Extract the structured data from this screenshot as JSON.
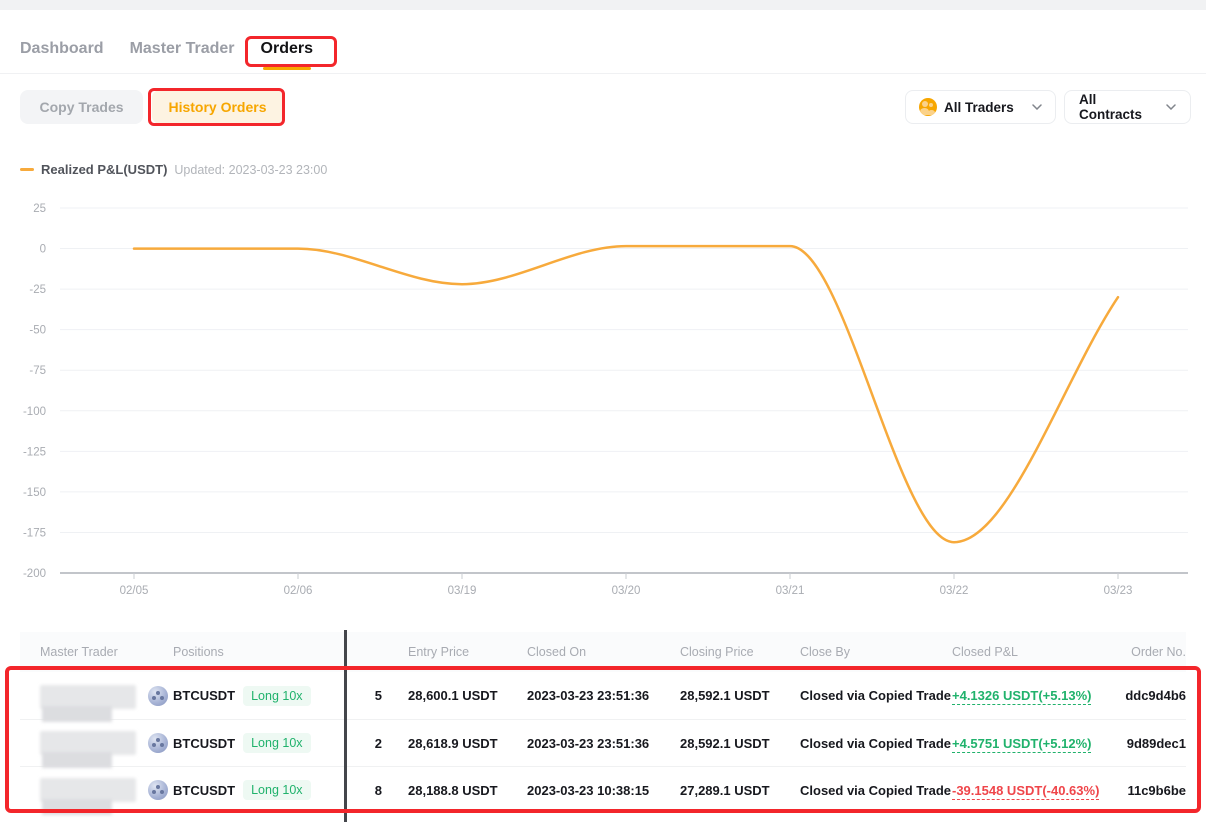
{
  "nav": {
    "tabs": [
      {
        "label": "Dashboard",
        "active": false
      },
      {
        "label": "Master Trader",
        "active": false
      },
      {
        "label": "Orders",
        "active": true
      }
    ]
  },
  "subnav": {
    "copy_trades": "Copy Trades",
    "history_orders": "History Orders"
  },
  "filters": {
    "all_traders": "All Traders",
    "all_contracts": "All Contracts"
  },
  "chart_data": {
    "type": "line",
    "title": "Realized P&L(USDT)",
    "updated": "Updated: 2023-03-23 23:00",
    "x": [
      "02/05",
      "02/06",
      "03/19",
      "03/20",
      "03/21",
      "03/22",
      "03/23"
    ],
    "values": [
      0,
      0,
      -22,
      1.5,
      1.5,
      -181,
      -30
    ],
    "ylim": [
      -200,
      25
    ],
    "yticks": [
      25,
      0,
      -25,
      -50,
      -75,
      -100,
      -125,
      -150,
      -175,
      -200
    ],
    "line_color": "#f7aa3c",
    "grid": true,
    "legend_position": "top-left",
    "xlabel": "",
    "ylabel": ""
  },
  "table": {
    "columns": [
      "Master Trader",
      "Positions",
      "",
      "Entry Price",
      "Closed On",
      "Closing Price",
      "Close By",
      "Closed P&L",
      "Order No."
    ],
    "rows": [
      {
        "symbol": "BTCUSDT",
        "side": "Long 10x",
        "qty_partial": "5",
        "entry": "28,600.1 USDT",
        "closed_on": "2023-03-23 23:51:36",
        "closing": "28,592.1 USDT",
        "close_by": "Closed via Copied Trade",
        "pnl": "+4.1326 USDT(+5.13%)",
        "pnl_type": "profit",
        "order": "ddc9d4b6"
      },
      {
        "symbol": "BTCUSDT",
        "side": "Long 10x",
        "qty_partial": "2",
        "entry": "28,618.9 USDT",
        "closed_on": "2023-03-23 23:51:36",
        "closing": "28,592.1 USDT",
        "close_by": "Closed via Copied Trade",
        "pnl": "+4.5751 USDT(+5.12%)",
        "pnl_type": "profit",
        "order": "9d89dec1"
      },
      {
        "symbol": "BTCUSDT",
        "side": "Long 10x",
        "qty_partial": "8",
        "entry": "28,188.8 USDT",
        "closed_on": "2023-03-23 10:38:15",
        "closing": "27,289.1 USDT",
        "close_by": "Closed via Copied Trade",
        "pnl": "-39.1548 USDT(-40.63%)",
        "pnl_type": "loss",
        "order": "11c9b6be"
      }
    ]
  },
  "colors": {
    "accent": "#f7a600",
    "profit": "#20b26c",
    "loss": "#ef454a",
    "annotation": "#f3262b"
  }
}
